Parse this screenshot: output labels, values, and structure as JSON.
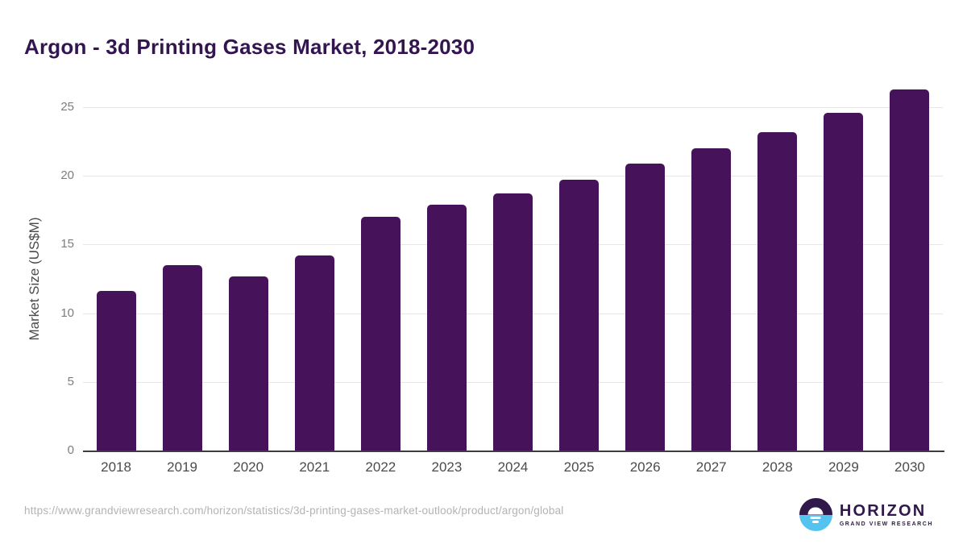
{
  "title": "Argon - 3d Printing Gases Market, 2018-2030",
  "source_url": "https://www.grandviewresearch.com/horizon/statistics/3d-printing-gases-market-outlook/product/argon/global",
  "logo": {
    "name": "HORIZON",
    "tagline": "GRAND VIEW RESEARCH",
    "icon": "horizon-sun-circle-icon",
    "purple": "#31184a",
    "blue": "#55c3f0"
  },
  "colors": {
    "bar": "#46125a",
    "title": "#331550",
    "gridline": "#e6e6e6",
    "axis_line": "#3c3c3c",
    "x_tick_text": "#4b4b4b",
    "y_tick_text": "#7d7d7d",
    "axis_title_text": "#4b4b4b",
    "url_text": "#b3b3b3"
  },
  "chart_data": {
    "type": "bar",
    "title": "Argon - 3d Printing Gases Market, 2018-2030",
    "categories": [
      "2018",
      "2019",
      "2020",
      "2021",
      "2022",
      "2023",
      "2024",
      "2025",
      "2026",
      "2027",
      "2028",
      "2029",
      "2030"
    ],
    "values": [
      11.6,
      13.5,
      12.7,
      14.2,
      17.0,
      17.9,
      18.7,
      19.7,
      20.9,
      22.0,
      23.2,
      24.6,
      26.3
    ],
    "xlabel": "",
    "ylabel": "Market Size (US$M)",
    "yticks": [
      0,
      5,
      10,
      15,
      20,
      25
    ],
    "ylim": [
      0,
      26.5
    ],
    "grid": "horizontal",
    "legend": "none",
    "bar_color": "#46125a"
  }
}
